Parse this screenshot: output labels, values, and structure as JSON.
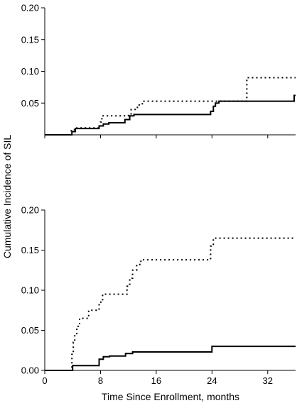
{
  "chart_data": {
    "type": "line",
    "step": true,
    "shared_ylabel": "Cumulative Incidence of SIL",
    "xlabel": "Time Since Enrollment, months",
    "xlim": [
      0,
      36
    ],
    "x_ticks": [
      0,
      8,
      16,
      24,
      32
    ],
    "x_tick_labels": [
      "0",
      "8",
      "16",
      "24",
      "32"
    ],
    "grid": false,
    "legend": "none",
    "panels": [
      {
        "id": "top",
        "ylim": [
          0,
          0.2
        ],
        "y_ticks": [
          0.05,
          0.1,
          0.15,
          0.2
        ],
        "y_tick_labels": [
          "0.05",
          "0.10",
          "0.15",
          "0.20"
        ],
        "show_x_tick_labels": false,
        "series": [
          {
            "style": "solid",
            "color": "#000000",
            "points": [
              [
                0,
                0
              ],
              [
                3.9,
                0
              ],
              [
                3.9,
                0.005
              ],
              [
                4.4,
                0.005
              ],
              [
                4.4,
                0.01
              ],
              [
                7.8,
                0.01
              ],
              [
                7.8,
                0.014
              ],
              [
                8.4,
                0.014
              ],
              [
                8.4,
                0.017
              ],
              [
                9.2,
                0.017
              ],
              [
                9.2,
                0.019
              ],
              [
                11.5,
                0.019
              ],
              [
                11.5,
                0.024
              ],
              [
                12.2,
                0.024
              ],
              [
                12.2,
                0.03
              ],
              [
                12.8,
                0.03
              ],
              [
                12.8,
                0.032
              ],
              [
                23.8,
                0.032
              ],
              [
                23.8,
                0.037
              ],
              [
                24.2,
                0.037
              ],
              [
                24.2,
                0.045
              ],
              [
                24.5,
                0.045
              ],
              [
                24.5,
                0.05
              ],
              [
                25.0,
                0.05
              ],
              [
                25.0,
                0.053
              ],
              [
                35.8,
                0.053
              ],
              [
                35.8,
                0.062
              ],
              [
                36,
                0.062
              ]
            ]
          },
          {
            "style": "dotted",
            "color": "#000000",
            "points": [
              [
                0,
                0
              ],
              [
                3.8,
                0
              ],
              [
                3.8,
                0.008
              ],
              [
                4.3,
                0.008
              ],
              [
                4.3,
                0.011
              ],
              [
                8.0,
                0.011
              ],
              [
                8.0,
                0.02
              ],
              [
                8.2,
                0.02
              ],
              [
                8.2,
                0.03
              ],
              [
                12.0,
                0.03
              ],
              [
                12.0,
                0.033
              ],
              [
                12.4,
                0.033
              ],
              [
                12.4,
                0.04
              ],
              [
                13.3,
                0.04
              ],
              [
                13.3,
                0.047
              ],
              [
                14.0,
                0.047
              ],
              [
                14.0,
                0.053
              ],
              [
                29.0,
                0.053
              ],
              [
                29.0,
                0.09
              ],
              [
                36,
                0.09
              ]
            ]
          }
        ]
      },
      {
        "id": "bottom",
        "ylim": [
          0,
          0.2
        ],
        "y_ticks": [
          0,
          0.05,
          0.1,
          0.15,
          0.2
        ],
        "y_tick_labels": [
          "0.00",
          "0.05",
          "0.10",
          "0.15",
          "0.20"
        ],
        "show_x_tick_labels": true,
        "series": [
          {
            "style": "solid",
            "color": "#000000",
            "points": [
              [
                0,
                0
              ],
              [
                4.0,
                0
              ],
              [
                4.0,
                0.006
              ],
              [
                7.8,
                0.006
              ],
              [
                7.8,
                0.014
              ],
              [
                8.4,
                0.014
              ],
              [
                8.4,
                0.017
              ],
              [
                9.3,
                0.017
              ],
              [
                9.3,
                0.018
              ],
              [
                11.6,
                0.018
              ],
              [
                11.6,
                0.021
              ],
              [
                12.6,
                0.021
              ],
              [
                12.6,
                0.023
              ],
              [
                24.0,
                0.023
              ],
              [
                24.0,
                0.03
              ],
              [
                36,
                0.03
              ]
            ]
          },
          {
            "style": "dotted",
            "color": "#000000",
            "points": [
              [
                0,
                0
              ],
              [
                3.9,
                0
              ],
              [
                3.9,
                0.02
              ],
              [
                4.1,
                0.02
              ],
              [
                4.1,
                0.035
              ],
              [
                4.3,
                0.035
              ],
              [
                4.3,
                0.045
              ],
              [
                4.6,
                0.045
              ],
              [
                4.6,
                0.055
              ],
              [
                5.0,
                0.055
              ],
              [
                5.0,
                0.065
              ],
              [
                6.3,
                0.065
              ],
              [
                6.3,
                0.075
              ],
              [
                7.8,
                0.075
              ],
              [
                7.8,
                0.085
              ],
              [
                8.3,
                0.085
              ],
              [
                8.3,
                0.095
              ],
              [
                11.8,
                0.095
              ],
              [
                11.8,
                0.105
              ],
              [
                12.2,
                0.105
              ],
              [
                12.2,
                0.115
              ],
              [
                12.6,
                0.115
              ],
              [
                12.6,
                0.125
              ],
              [
                13.2,
                0.125
              ],
              [
                13.2,
                0.132
              ],
              [
                13.8,
                0.132
              ],
              [
                13.8,
                0.138
              ],
              [
                23.8,
                0.138
              ],
              [
                23.8,
                0.155
              ],
              [
                24.2,
                0.155
              ],
              [
                24.2,
                0.165
              ],
              [
                36,
                0.165
              ]
            ]
          }
        ]
      }
    ]
  }
}
